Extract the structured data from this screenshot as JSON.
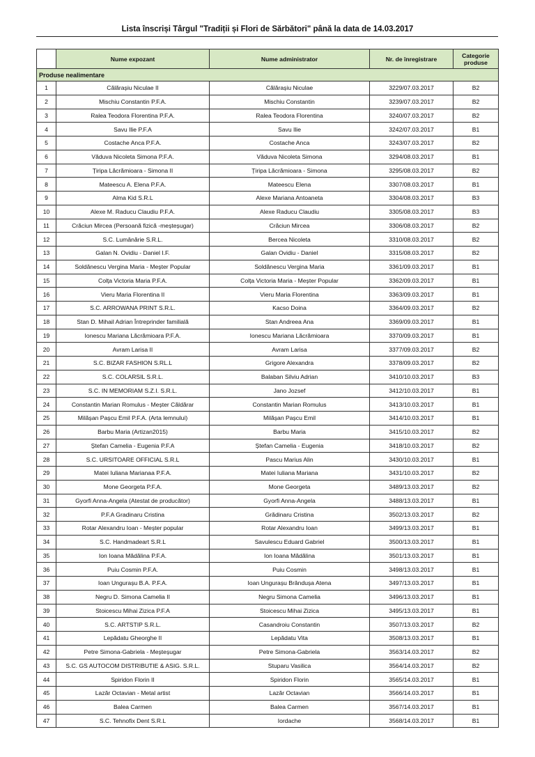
{
  "title": "Lista înscriși Târgul \"Tradiții și Flori de Sărbători\" până la data de 14.03.2017",
  "headers": {
    "num": "",
    "exhibitor": "Nume expozant",
    "administrator": "Nume administrator",
    "registration": "Nr. de înregistrare",
    "category": "Categorie produse"
  },
  "section": "Produse nealimentare",
  "rows": [
    [
      "1",
      "Călărașiu Niculae II",
      "Călărașiu Niculae",
      "3229/07.03.2017",
      "B2"
    ],
    [
      "2",
      "Mischiu Constantin P.F.A.",
      "Mischiu Constantin",
      "3239/07.03.2017",
      "B2"
    ],
    [
      "3",
      "Ralea Teodora Florentina P.F.A.",
      "Ralea Teodora Florentina",
      "3240/07.03.2017",
      "B2"
    ],
    [
      "4",
      "Savu Ilie P.F.A",
      "Savu Ilie",
      "3242/07.03.2017",
      "B1"
    ],
    [
      "5",
      "Costache Anca P.F.A.",
      "Costache Anca",
      "3243/07.03.2017",
      "B2"
    ],
    [
      "6",
      "Văduva Nicoleta Simona P.F.A.",
      "Văduva Nicoleta Simona",
      "3294/08.03.2017",
      "B1"
    ],
    [
      "7",
      "Țiripa Lăcrămioara - Simona   II",
      "Țiripa Lăcrămioara - Simona",
      "3295/08.03.2017",
      "B2"
    ],
    [
      "8",
      "Mateescu A. Elena P.F.A.",
      "Mateescu Elena",
      "3307/08.03.2017",
      "B1"
    ],
    [
      "9",
      "Alma Kid S.R.L",
      "Alexe Mariana Antoaneta",
      "3304/08.03.2017",
      "B3"
    ],
    [
      "10",
      "Alexe M. Raducu Claudiu P.F.A.",
      "Alexe Raducu Claudiu",
      "3305/08.03.2017",
      "B3"
    ],
    [
      "11",
      "Crăciun Mircea (Persoană fizică -meșteșugar)",
      "Crăciun Mircea",
      "3306/08.03.2017",
      "B2"
    ],
    [
      "12",
      "S.C. Lumânărie S.R.L.",
      "Bercea Nicoleta",
      "3310/08.03.2017",
      "B2"
    ],
    [
      "13",
      "Galan N. Ovidiu - Daniel I.F.",
      "Galan Ovidiu - Daniel",
      "3315/08.03.2017",
      "B2"
    ],
    [
      "14",
      "Soldănescu Vergina Maria - Meșter Popular",
      "Soldănescu Vergina Maria",
      "3361/09.03.2017",
      "B1"
    ],
    [
      "15",
      "Colța Victoria Maria P.F.A.",
      "Colța Victoria Maria - Meșter Popular",
      "3362/09.03.2017",
      "B1"
    ],
    [
      "16",
      "Vieru Maria Florentina II",
      "Vieru Maria Florentina",
      "3363/09.03.2017",
      "B1"
    ],
    [
      "17",
      "S.C. ARROWANA PRINT S.R.L.",
      "Kacso Doina",
      "3364/09.03.2017",
      "B2"
    ],
    [
      "18",
      "Stan D. Mihail Adrian Întreprinder familială",
      "Stan Andreea Ana",
      "3369/09.03.2017",
      "B1"
    ],
    [
      "19",
      "Ionescu Mariana Lăcrămioara P.F.A.",
      "Ionescu Mariana Lăcrămioara",
      "3370/09.03.2017",
      "B1"
    ],
    [
      "20",
      "Avram Larisa II",
      "Avram Larisa",
      "3377/09.03.2017",
      "B2"
    ],
    [
      "21",
      "S.C. BIZAR FASHION S.RL.L",
      "Grigore Alexandra",
      "3378/09.03.2017",
      "B2"
    ],
    [
      "22",
      "S.C. COLARSIL S.R.L.",
      "Balaban Silviu Adrian",
      "3410/10.03.2017",
      "B3"
    ],
    [
      "23",
      "S.C. IN MEMORIAM S.Z.I. S.R.L.",
      "Jano Jozsef",
      "3412/10.03.2017",
      "B1"
    ],
    [
      "24",
      "Constantin Marian Romulus - Meșter Căldărar",
      "Constantin Marian Romulus",
      "3413/10.03.2017",
      "B1"
    ],
    [
      "25",
      "Milășan Pașcu Emil P.F.A. (Arta lemnului)",
      "Milășan Pașcu Emil",
      "3414/10.03.2017",
      "B1"
    ],
    [
      "26",
      "Barbu Maria (Artizan2015)",
      "Barbu Maria",
      "3415/10.03.2017",
      "B2"
    ],
    [
      "27",
      "Ștefan Camelia - Eugenia  P.F.A",
      "Ștefan Camelia - Eugenia",
      "3418/10.03.2017",
      "B2"
    ],
    [
      "28",
      "S.C. URSITOARE OFFICIAL S.R.L",
      "Pascu Marius Alin",
      "3430/10.03.2017",
      "B1"
    ],
    [
      "29",
      "Matei Iuliana Marianaa P.F.A.",
      "Matei Iuliana Mariana",
      "3431/10.03.2017",
      "B2"
    ],
    [
      "30",
      "Mone Georgeta P.F.A.",
      "Mone Georgeta",
      "3489/13.03.2017",
      "B2"
    ],
    [
      "31",
      "Gyorfi Anna-Angela (Atestat de producător)",
      "Gyorfi Anna-Angela",
      "3488/13.03.2017",
      "B1"
    ],
    [
      "32",
      "P.F.A Gradinaru Cristina",
      "Grădinaru Cristina",
      "3502/13.03.2017",
      "B2"
    ],
    [
      "33",
      "Rotar Alexandru Ioan - Meșter popular",
      "Rotar Alexandru Ioan",
      "3499/13.03.2017",
      "B1"
    ],
    [
      "34",
      "S.C. Handmadeart S.R.L",
      "Savulescu Eduard Gabriel",
      "3500/13.03.2017",
      "B1"
    ],
    [
      "35",
      "Ion Ioana Mădălina P.F.A.",
      "Ion Ioana Mădălina",
      "3501/13.03.2017",
      "B1"
    ],
    [
      "36",
      "Puiu Cosmin P.F.A.",
      "Puiu Cosmin",
      "3498/13.03.2017",
      "B1"
    ],
    [
      "37",
      "Ioan Ungurașu B.A. P.F.A.",
      "Ioan Ungurașu Brândușa Atena",
      "3497/13.03.2017",
      "B1"
    ],
    [
      "38",
      "Negru D. Simona Camelia II",
      "Negru Simona Camelia",
      "3496/13.03.2017",
      "B1"
    ],
    [
      "39",
      "Stoicescu Mihai Zizica P.F.A",
      "Stoicescu Mihai Zizica",
      "3495/13.03.2017",
      "B1"
    ],
    [
      "40",
      "S.C. ARTSTIP S.R.L.",
      "Casandroiu Constantin",
      "3507/13.03.2017",
      "B2"
    ],
    [
      "41",
      "Lepădatu Gheorghe II",
      "Lepădatu Vita",
      "3508/13.03.2017",
      "B1"
    ],
    [
      "42",
      "Petre Simona-Gabriela - Meșteșugar",
      "Petre Simona-Gabriela",
      "3563/14.03.2017",
      "B2"
    ],
    [
      "43",
      "S.C. GS AUTOCOM DISTRIBUTIE & ASIG. S.R.L.",
      "Stuparu Vasilica",
      "3564/14.03.2017",
      "B2"
    ],
    [
      "44",
      "Spiridon Florin II",
      "Spiridon Florin",
      "3565/14.03.2017",
      "B1"
    ],
    [
      "45",
      "Lazăr Octavian - Metal artist",
      "Lazăr Octavian",
      "3566/14.03.2017",
      "B1"
    ],
    [
      "46",
      "Balea Carmen",
      "Balea Carmen",
      "3567/14.03.2017",
      "B1"
    ],
    [
      "47",
      "S.C. Tehnofix Dent S.R.L",
      "Iordache",
      "3568/14.03.2017",
      "B1"
    ]
  ]
}
